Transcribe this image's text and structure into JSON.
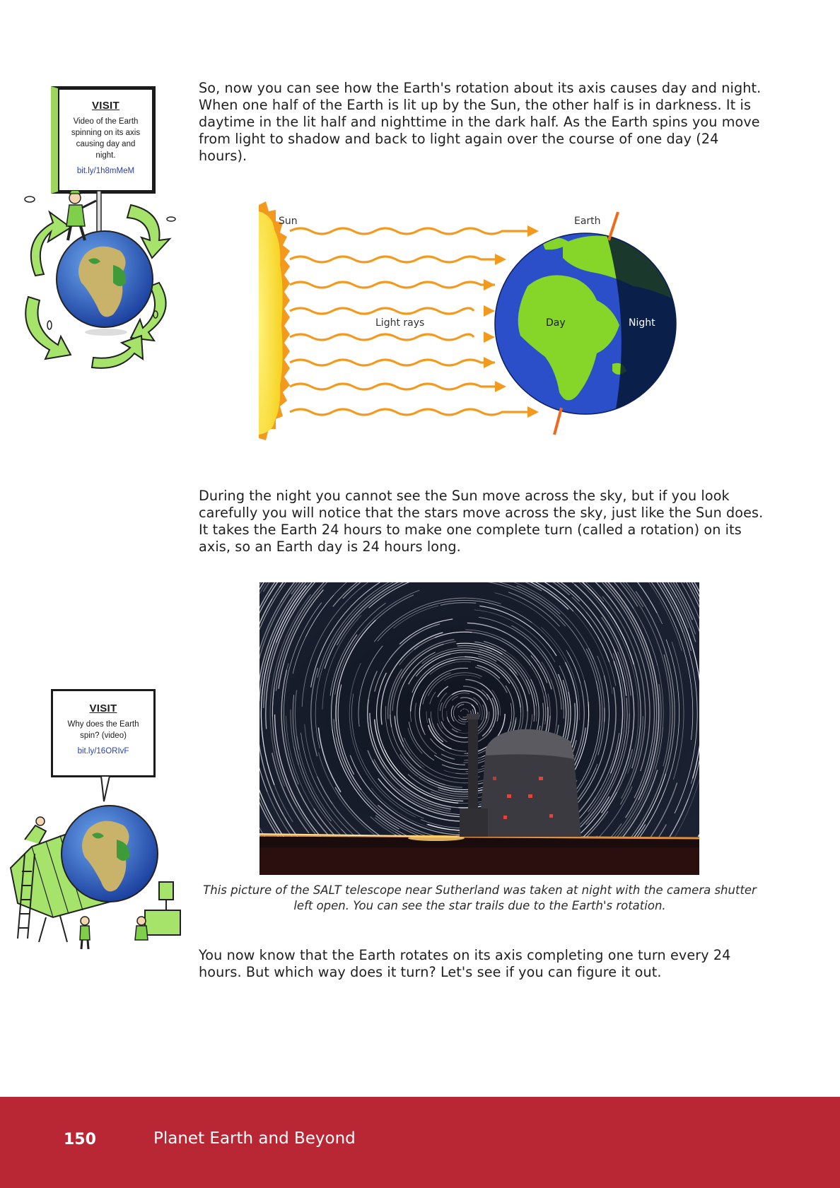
{
  "paragraphs": {
    "p1": "So, now you can see how the Earth's rotation about its axis causes day and night. When one half of the Earth is lit up by the Sun, the other half is in darkness. It is daytime in the lit half and nighttime in the dark half. As the Earth spins you move from light to shadow and back to light again over the course of one day (24 hours).",
    "p2": "During the night you cannot see the Sun move across the sky, but if you look carefully you will notice that the stars move across the sky, just like the Sun does. It takes the Earth 24 hours to make one complete turn (called a rotation) on its axis, so an Earth day is 24 hours long.",
    "p3": "You now know that the Earth rotates on its axis completing one turn every 24 hours. But which way does it turn? Let's see if you can figure it out."
  },
  "visit1": {
    "title": "VISIT",
    "description": "Video of the Earth spinning on its axis causing day and night.",
    "link": "bit.ly/1h8mMeM"
  },
  "visit2": {
    "title": "VISIT",
    "description": "Why does the Earth spin? (video)",
    "link": "bit.ly/16ORIvF"
  },
  "diagram": {
    "sun_label": "Sun",
    "earth_label": "Earth",
    "rays_label": "Light rays",
    "day_label": "Day",
    "night_label": "Night"
  },
  "caption": "This picture of the SALT telescope near Sutherland was taken at night with the camera shutter left open. You can see the star trails due to the Earth's rotation.",
  "footer": {
    "page_number": "150",
    "title": "Planet Earth and Beyond"
  },
  "colors": {
    "footer_bg": "#b92735",
    "ray_orange": "#f39a1e",
    "sun_yellow": "#f6d21f",
    "ocean_blue": "#2b4fc9",
    "land_green": "#86d62a",
    "link_blue": "#2a3fb0"
  }
}
